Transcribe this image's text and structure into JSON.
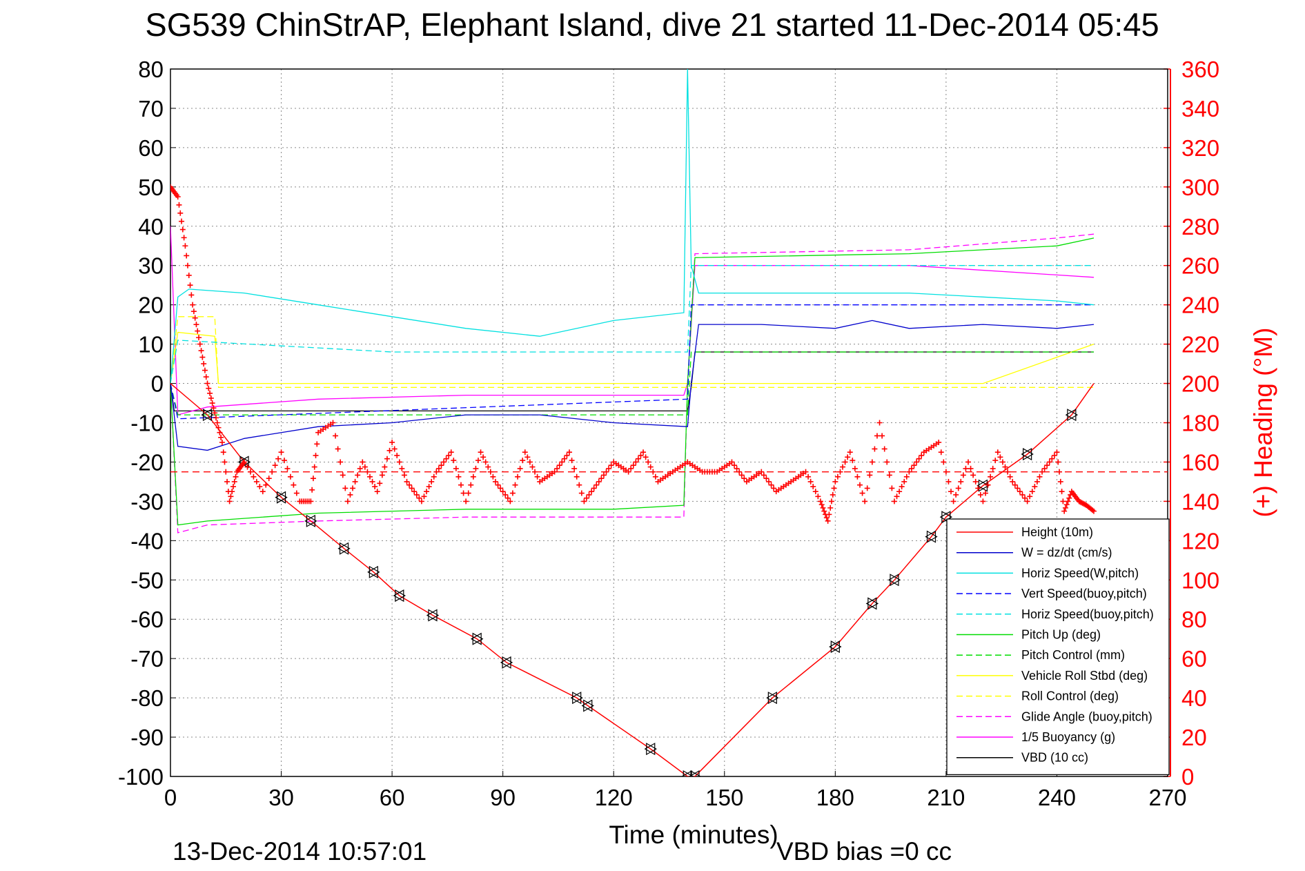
{
  "chart_data": {
    "type": "line",
    "title": "SG539 ChinStrAP, Elephant Island, dive 21 started 11-Dec-2014 05:45",
    "xlabel": "Time (minutes)",
    "ylabel": "",
    "y2label": "(+) Heading (°M)",
    "xlim": [
      0,
      270
    ],
    "ylim": [
      -100,
      80
    ],
    "y2lim": [
      0,
      360
    ],
    "xticks": [
      "0",
      "30",
      "60",
      "90",
      "120",
      "150",
      "180",
      "210",
      "240",
      "270"
    ],
    "yticks": [
      "80",
      "70",
      "60",
      "50",
      "40",
      "30",
      "20",
      "10",
      "0",
      "-10",
      "-20",
      "-30",
      "-40",
      "-50",
      "-60",
      "-70",
      "-80",
      "-90",
      "-100"
    ],
    "y2ticks": [
      "360",
      "340",
      "320",
      "300",
      "280",
      "260",
      "240",
      "220",
      "200",
      "180",
      "160",
      "140",
      "120",
      "100",
      "80",
      "60",
      "40",
      "20",
      "0"
    ],
    "grid": true,
    "legend_position": "lower-right",
    "timestamp": "13-Dec-2014 10:57:01",
    "vbd_bias": "VBD bias =0 cc",
    "colors": {
      "height": "#ff0000",
      "w": "#0000cc",
      "horiz": "#00e0e0",
      "vert_buoy": "#0000ff",
      "horiz_buoy": "#00e0e0",
      "pitch": "#00dd00",
      "pitch_ctrl": "#00dd00",
      "roll": "#ffff00",
      "roll_ctrl": "#ffff00",
      "glide": "#ff00ff",
      "buoy": "#ff00ff",
      "vbd": "#000000",
      "heading": "#ff0000"
    },
    "series": [
      {
        "name": "Height (10m)",
        "style": "solid",
        "color": "#ff0000",
        "x": [
          0,
          10,
          20,
          30,
          38,
          47,
          55,
          62,
          71,
          83,
          91,
          110,
          113,
          130,
          140,
          142,
          163,
          180,
          190,
          196,
          206,
          210,
          220,
          232,
          244,
          250
        ],
        "y": [
          0,
          -8,
          -20,
          -29,
          -35,
          -42,
          -48,
          -54,
          -59,
          -65,
          -71,
          -80,
          -82,
          -93,
          -100,
          -100,
          -80,
          -67,
          -56,
          -50,
          -39,
          -34,
          -26,
          -18,
          -8,
          0
        ]
      },
      {
        "name": "W = dz/dt (cm/s)",
        "style": "solid",
        "color": "#0000cc",
        "x": [
          0,
          2,
          10,
          20,
          40,
          60,
          80,
          100,
          120,
          140,
          141,
          143,
          160,
          180,
          190,
          200,
          220,
          240,
          250
        ],
        "y": [
          0,
          -16,
          -17,
          -14,
          -11,
          -10,
          -8,
          -8,
          -10,
          -11,
          0,
          15,
          15,
          14,
          16,
          14,
          15,
          14,
          15
        ]
      },
      {
        "name": "Horiz Speed(W,pitch)",
        "style": "solid",
        "color": "#00e0e0",
        "x": [
          0,
          2,
          5,
          20,
          40,
          60,
          80,
          100,
          120,
          139,
          140,
          141,
          143,
          160,
          180,
          200,
          220,
          240,
          250
        ],
        "y": [
          0,
          22,
          24,
          23,
          20,
          17,
          14,
          12,
          16,
          18,
          80,
          30,
          23,
          23,
          23,
          23,
          22,
          21,
          20
        ]
      },
      {
        "name": "Vert Speed(buoy,pitch)",
        "style": "dashed",
        "color": "#0000ff",
        "x": [
          0,
          2,
          140,
          141,
          250
        ],
        "y": [
          0,
          -9,
          -4,
          20,
          20
        ]
      },
      {
        "name": "Horiz Speed(buoy,pitch)",
        "style": "dashed",
        "color": "#00e0e0",
        "x": [
          0,
          2,
          60,
          140,
          141,
          250
        ],
        "y": [
          0,
          11,
          8,
          8,
          30,
          30
        ]
      },
      {
        "name": "Pitch Up (deg)",
        "style": "solid",
        "color": "#00dd00",
        "x": [
          0,
          2,
          10,
          40,
          80,
          120,
          139,
          140,
          142,
          200,
          240,
          250
        ],
        "y": [
          0,
          -36,
          -35,
          -33,
          -32,
          -32,
          -31,
          0,
          32,
          33,
          35,
          37
        ]
      },
      {
        "name": "Pitch Control (mm)",
        "style": "dashed",
        "color": "#00dd00",
        "x": [
          0,
          2,
          140,
          141,
          250
        ],
        "y": [
          0,
          -8,
          -8,
          8,
          8
        ]
      },
      {
        "name": "Vehicle Roll Stbd (deg)",
        "style": "solid",
        "color": "#ffff00",
        "x": [
          0,
          2,
          12,
          13,
          40,
          60,
          80,
          100,
          120,
          140,
          141,
          180,
          220,
          250
        ],
        "y": [
          0,
          13,
          12,
          0,
          0,
          0,
          0,
          0,
          0,
          0,
          0,
          0,
          0,
          10
        ]
      },
      {
        "name": "Roll Control (deg)",
        "style": "dashed",
        "color": "#ffff00",
        "x": [
          0,
          2,
          12,
          13,
          140,
          141,
          250
        ],
        "y": [
          0,
          17,
          17,
          -1,
          -1,
          -1,
          -1
        ]
      },
      {
        "name": "Glide Angle (buoy,pitch)",
        "style": "dashed",
        "color": "#ff00ff",
        "x": [
          0,
          2,
          10,
          40,
          80,
          120,
          139,
          140,
          142,
          200,
          240,
          250
        ],
        "y": [
          0,
          -38,
          -36,
          -35,
          -34,
          -34,
          -34,
          0,
          33,
          34,
          37,
          38
        ]
      },
      {
        "name": "1/5 Buoyancy (g)",
        "style": "solid",
        "color": "#ff00ff",
        "x": [
          0,
          2,
          10,
          40,
          80,
          120,
          139,
          140,
          142,
          200,
          250
        ],
        "y": [
          40,
          -8,
          -6,
          -4,
          -3,
          -3,
          -3,
          0,
          30,
          30,
          27
        ]
      },
      {
        "name": "VBD (10 cc)",
        "style": "solid",
        "color": "#000000",
        "x": [
          0,
          1,
          140,
          141,
          142,
          250
        ],
        "y": [
          0,
          -7,
          -7,
          -1,
          8,
          8
        ]
      }
    ],
    "heading": {
      "name": "(+) Heading",
      "color": "#ff0000",
      "mean": 155,
      "x": [
        0,
        2,
        4,
        6,
        8,
        10,
        12,
        14,
        16,
        18,
        20,
        25,
        30,
        35,
        38,
        40,
        44,
        48,
        52,
        56,
        60,
        64,
        68,
        72,
        76,
        80,
        84,
        88,
        92,
        96,
        100,
        104,
        108,
        112,
        116,
        120,
        124,
        128,
        132,
        136,
        140,
        144,
        148,
        152,
        156,
        160,
        164,
        168,
        172,
        176,
        178,
        180,
        184,
        188,
        192,
        196,
        200,
        204,
        208,
        212,
        216,
        220,
        224,
        228,
        232,
        236,
        240,
        242,
        244,
        246,
        248,
        250
      ],
      "y": [
        300,
        295,
        270,
        240,
        220,
        200,
        185,
        170,
        140,
        155,
        160,
        145,
        165,
        140,
        140,
        175,
        180,
        140,
        160,
        145,
        170,
        150,
        140,
        155,
        165,
        140,
        165,
        150,
        140,
        165,
        150,
        155,
        165,
        140,
        150,
        160,
        155,
        165,
        150,
        155,
        160,
        155,
        155,
        160,
        150,
        155,
        145,
        150,
        155,
        140,
        130,
        150,
        165,
        140,
        180,
        140,
        155,
        165,
        170,
        140,
        160,
        140,
        165,
        150,
        140,
        155,
        165,
        135,
        145,
        140,
        138,
        135
      ]
    }
  }
}
